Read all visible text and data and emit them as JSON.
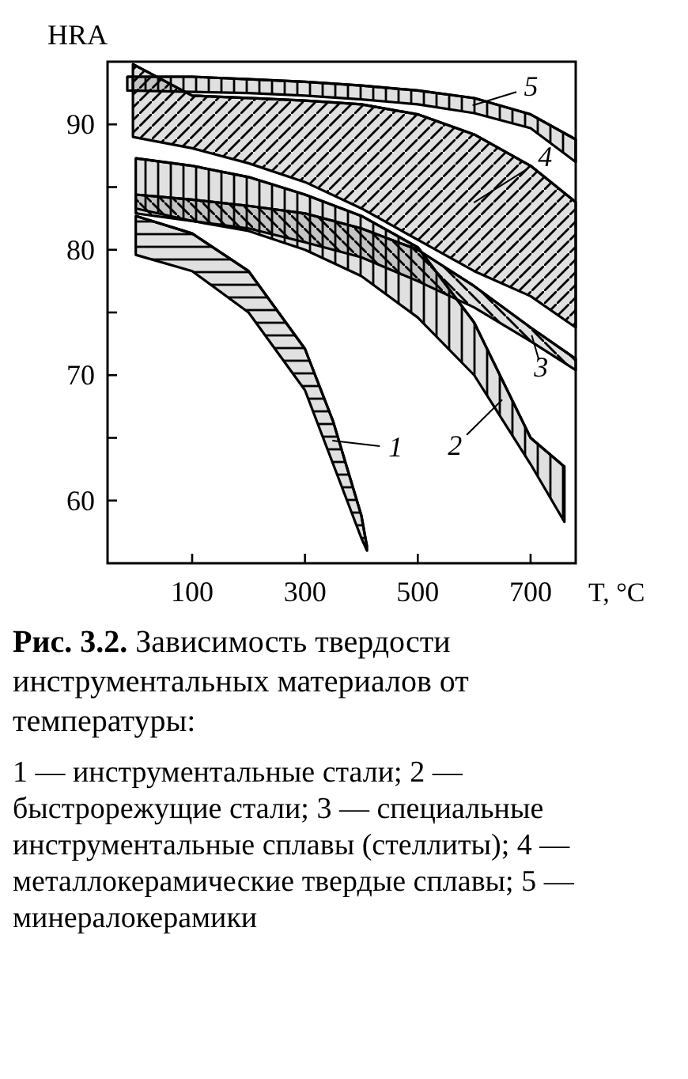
{
  "chart_data": {
    "type": "line",
    "legend": "top right",
    "ylabel": "HRA",
    "xlabel": "T, °C",
    "title": "Рис. 3.2. Зависимость твердости инструментальных материалов от температуры:",
    "annotations": [
      "1 — инструментальные стали; 2 — быстрорежущие стали; 3 — специальные инструментальные сплавы (стеллиты); 4 — металлокерамические твердые сплавы; 5 — минералокерамики"
    ],
    "xlim": [
      -50,
      780
    ],
    "xticks": [
      100,
      300,
      500,
      700
    ],
    "ylim": [
      55,
      95
    ],
    "yticks": [
      60,
      {
        "value": 65,
        "label": null
      },
      70,
      {
        "value": 75,
        "label": null
      },
      80,
      {
        "value": 85,
        "label": null
      },
      90
    ],
    "series": [
      {
        "name": "1",
        "color": "#000000",
        "x": [
          0,
          100,
          200,
          300,
          350,
          400,
          410
        ],
        "values": [
          82.7,
          81.3,
          78.3,
          72.1,
          66.3,
          58.8,
          56.3
        ],
        "upper": [
          82.7,
          81.3,
          78.3,
          72.1,
          66.3,
          58.8,
          56.3
        ],
        "lower": [
          79.6,
          78.3,
          75,
          68.8,
          62.9,
          57,
          56
        ]
      },
      {
        "name": "2",
        "color": "#000000",
        "x": [
          0,
          100,
          200,
          300,
          400,
          500,
          600,
          700,
          760
        ],
        "values": [
          87.3,
          86.7,
          85.8,
          84.4,
          82.7,
          80.2,
          74.2,
          65,
          62.7
        ],
        "upper": [
          87.3,
          86.7,
          85.8,
          84.4,
          82.7,
          80.2,
          74.2,
          65,
          62.7
        ],
        "lower": [
          83.3,
          82.3,
          81.5,
          80,
          77.9,
          74.6,
          70,
          62.9,
          58.3
        ]
      },
      {
        "name": "3",
        "color": "#000000",
        "x": [
          0,
          100,
          200,
          300,
          400,
          500,
          600,
          700,
          780
        ],
        "values": [
          84.4,
          84,
          83.5,
          82.9,
          81.7,
          80,
          77.1,
          73.8,
          71.3
        ],
        "upper": [
          84.4,
          84,
          83.5,
          82.9,
          81.7,
          80,
          77.1,
          73.8,
          71.3
        ],
        "lower": [
          82.9,
          82.3,
          81.7,
          80.6,
          79.4,
          77.5,
          75.4,
          72.7,
          70.4
        ]
      },
      {
        "name": "4",
        "color": "#000000",
        "x": [
          -5,
          100,
          200,
          300,
          400,
          500,
          600,
          700,
          780
        ],
        "values": [
          94.8,
          92.3,
          92.1,
          91.9,
          91.6,
          90.8,
          89.2,
          86.7,
          83.8
        ],
        "upper": [
          94.8,
          92.3,
          92.1,
          91.9,
          91.6,
          90.8,
          89.2,
          86.7,
          83.8
        ],
        "lower": [
          89,
          88.1,
          86.9,
          85.4,
          83.3,
          80.8,
          78.3,
          76.3,
          73.8
        ]
      },
      {
        "name": "5",
        "color": "#000000",
        "x": [
          -15,
          100,
          200,
          300,
          400,
          500,
          600,
          700,
          780
        ],
        "values": [
          93.8,
          93.8,
          93.6,
          93.4,
          93.1,
          92.7,
          92.1,
          90.8,
          88.8
        ],
        "upper": [
          93.8,
          93.8,
          93.6,
          93.4,
          93.1,
          92.7,
          92.1,
          90.8,
          88.8
        ],
        "lower": [
          92.7,
          92.6,
          92.5,
          92.3,
          92,
          91.6,
          90.9,
          89.7,
          87
        ]
      }
    ]
  }
}
